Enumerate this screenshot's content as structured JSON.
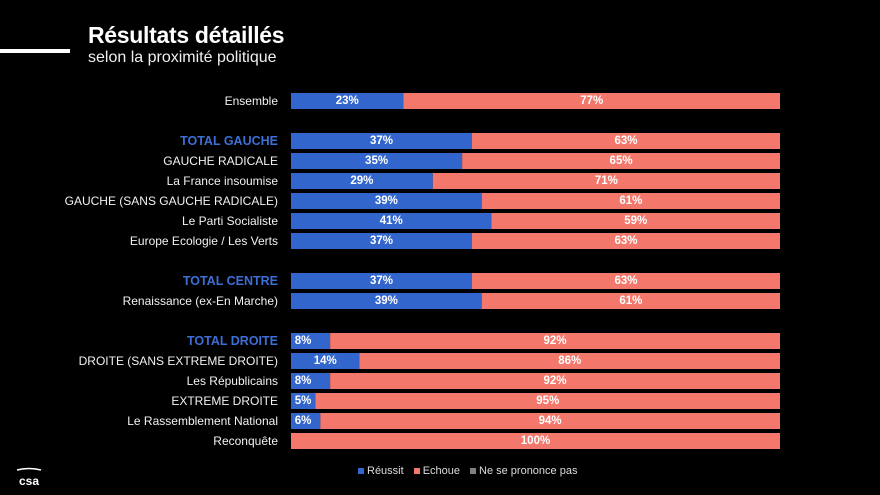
{
  "header": {
    "title": "Résultats détaillés",
    "subtitle": "selon la proximité politique"
  },
  "colors": {
    "reussit": "#3366cc",
    "echoue": "#f4776b",
    "nspp": "#808080",
    "group_label": "#3d6fd6"
  },
  "chart_data": {
    "type": "bar",
    "orientation": "horizontal-stacked-100",
    "categories": [
      "Ensemble",
      "TOTAL GAUCHE",
      "GAUCHE RADICALE",
      "La France insoumise",
      "GAUCHE (SANS GAUCHE RADICALE)",
      "Le Parti Socialiste",
      "Europe Ecologie / Les Verts",
      "TOTAL CENTRE",
      "Renaissance (ex-En Marche)",
      "TOTAL DROITE",
      "DROITE (SANS EXTREME DROITE)",
      "Les Républicains",
      "EXTREME DROITE",
      "Le Rassemblement National",
      "Reconquête"
    ],
    "group_headers": [
      "TOTAL GAUCHE",
      "TOTAL CENTRE",
      "TOTAL DROITE"
    ],
    "series": [
      {
        "name": "Réussit",
        "values": [
          23,
          37,
          35,
          29,
          39,
          41,
          37,
          37,
          39,
          8,
          14,
          8,
          5,
          6,
          0
        ]
      },
      {
        "name": "Echoue",
        "values": [
          77,
          63,
          65,
          71,
          61,
          59,
          63,
          63,
          61,
          92,
          86,
          92,
          95,
          94,
          100
        ]
      },
      {
        "name": "Ne se prononce pas",
        "values": [
          0,
          0,
          0,
          0,
          0,
          0,
          0,
          0,
          0,
          0,
          0,
          0,
          0,
          0,
          0
        ]
      }
    ],
    "value_suffix": "%",
    "xlim": [
      0,
      100
    ],
    "legend_position": "bottom"
  },
  "legend": [
    {
      "label": "Réussit",
      "color": "#3366cc"
    },
    {
      "label": "Echoue",
      "color": "#f4776b"
    },
    {
      "label": "Ne se prononce pas",
      "color": "#808080"
    }
  ],
  "logo_text": "csa"
}
